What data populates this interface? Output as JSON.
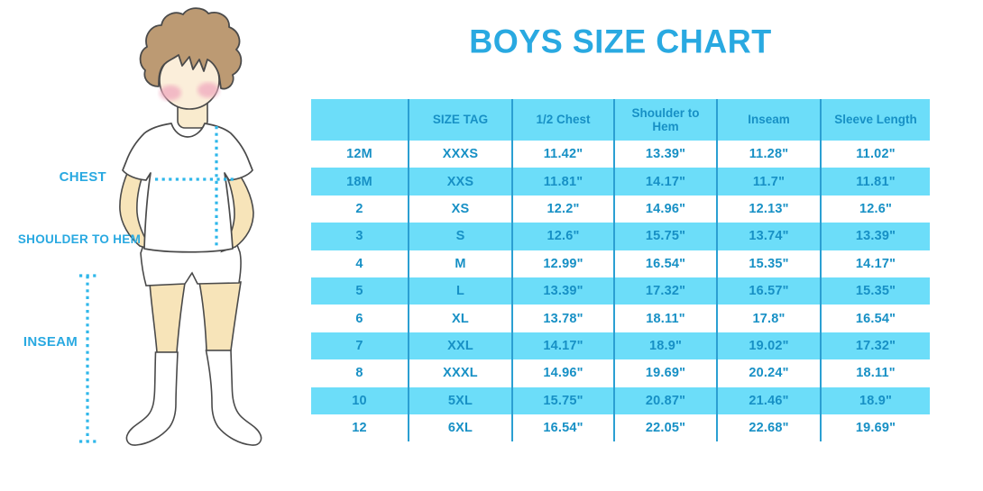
{
  "title": "BOYS SIZE CHART",
  "figure": {
    "description": "outline illustration of a boy in white t-shirt, shorts and knee socks with dotted measurement guides",
    "labels": {
      "chest": "CHEST",
      "shoulder_to_hem": "SHOULDER TO HEM",
      "inseam": "INSEAM"
    }
  },
  "colors": {
    "accent_blue": "#29A9E1",
    "row_highlight": "#6CDDF9",
    "table_text": "#1790C5",
    "divider": "#2B9FD2",
    "dotted_line": "#2FB7EA",
    "hair": "#BC9A73",
    "skin": "#F7E4B9",
    "face": "#FBEEDA",
    "blush": "#F0A9BE"
  },
  "chart_data": {
    "type": "table",
    "title": "BOYS SIZE CHART",
    "columns": [
      "",
      "SIZE TAG",
      "1/2 Chest",
      "Shoulder to Hem",
      "Inseam",
      "Sleeve Length"
    ],
    "rows": [
      [
        "12M",
        "XXXS",
        "11.42\"",
        "13.39\"",
        "11.28\"",
        "11.02\""
      ],
      [
        "18M",
        "XXS",
        "11.81\"",
        "14.17\"",
        "11.7\"",
        "11.81\""
      ],
      [
        "2",
        "XS",
        "12.2\"",
        "14.96\"",
        "12.13\"",
        "12.6\""
      ],
      [
        "3",
        "S",
        "12.6\"",
        "15.75\"",
        "13.74\"",
        "13.39\""
      ],
      [
        "4",
        "M",
        "12.99\"",
        "16.54\"",
        "15.35\"",
        "14.17\""
      ],
      [
        "5",
        "L",
        "13.39\"",
        "17.32\"",
        "16.57\"",
        "15.35\""
      ],
      [
        "6",
        "XL",
        "13.78\"",
        "18.11\"",
        "17.8\"",
        "16.54\""
      ],
      [
        "7",
        "XXL",
        "14.17\"",
        "18.9\"",
        "19.02\"",
        "17.32\""
      ],
      [
        "8",
        "XXXL",
        "14.96\"",
        "19.69\"",
        "20.24\"",
        "18.11\""
      ],
      [
        "10",
        "5XL",
        "15.75\"",
        "20.87\"",
        "21.46\"",
        "18.9\""
      ],
      [
        "12",
        "6XL",
        "16.54\"",
        "22.05\"",
        "22.68\"",
        "19.69\""
      ]
    ],
    "units": "inches",
    "row_shading": "alternating white / light cyan",
    "legend_position": "none",
    "grid": "vertical column dividers only"
  }
}
